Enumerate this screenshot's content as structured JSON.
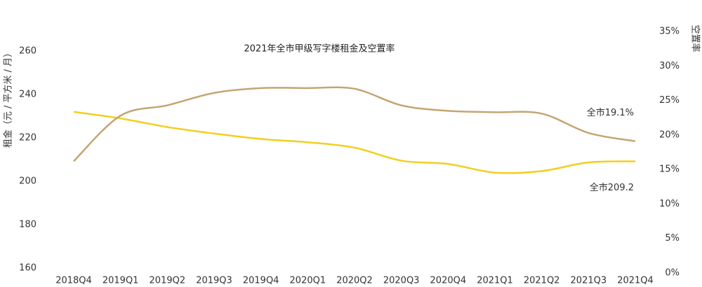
{
  "chart_data": {
    "type": "line",
    "title": "2021年全市甲级写字楼租金及空置率",
    "y_label": "租金（元 / 平方米 / 月）",
    "y2_label": "空置率",
    "categories": [
      "2018Q4",
      "2019Q1",
      "2019Q2",
      "2019Q3",
      "2019Q4",
      "2020Q1",
      "2020Q2",
      "2020Q3",
      "2020Q4",
      "2021Q1",
      "2021Q2",
      "2021Q3",
      "2021Q4"
    ],
    "series": [
      {
        "name": "租金",
        "color": "#f2cf1f",
        "values": [
          232,
          229,
          225,
          222,
          219.5,
          218,
          215.5,
          209.5,
          208,
          204,
          204.7,
          208.7,
          209.2
        ],
        "value_labels": [
          null,
          null,
          null,
          null,
          null,
          null,
          null,
          null,
          null,
          null,
          null,
          null,
          "全市209.2"
        ]
      },
      {
        "name": "空置率",
        "color": "#c4a574",
        "axis": "y2",
        "values": [
          16.2,
          22.8,
          24.3,
          26.1,
          26.8,
          26.8,
          26.7,
          24.3,
          23.5,
          23.3,
          23.1,
          20.3,
          19.1
        ],
        "value_labels": [
          null,
          null,
          null,
          null,
          null,
          null,
          null,
          null,
          null,
          null,
          null,
          null,
          "全市19.1%"
        ]
      }
    ],
    "ylim": [
      160,
      260
    ],
    "yticks": [
      160,
      180,
      200,
      220,
      240,
      260
    ],
    "y2lim": [
      0,
      35
    ],
    "y2ticks": [
      {
        "value": 0,
        "label": "0%"
      },
      {
        "value": 5,
        "label": "5%"
      },
      {
        "value": 10,
        "label": "10%"
      },
      {
        "value": 15,
        "label": "15%"
      },
      {
        "value": 20,
        "label": "20%"
      },
      {
        "value": 25,
        "label": "25%"
      },
      {
        "value": 30,
        "label": "30%"
      },
      {
        "value": 35,
        "label": "35%"
      }
    ],
    "grid": false
  }
}
